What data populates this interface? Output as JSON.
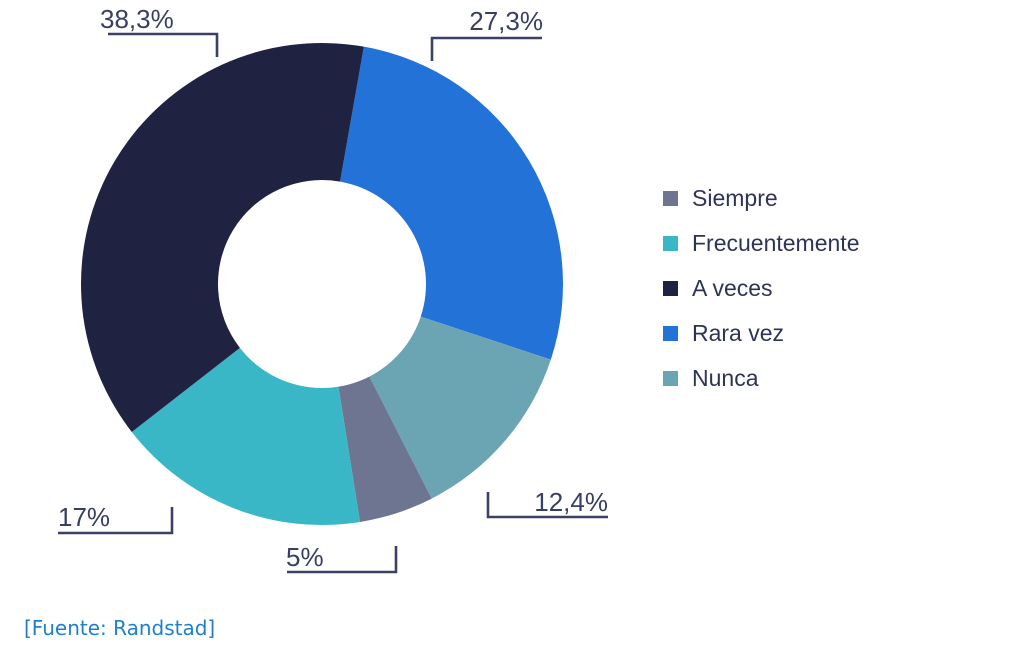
{
  "chart_data": {
    "type": "donut",
    "title": "",
    "legend_position": "right",
    "start_angle_deg": 10,
    "segments": [
      {
        "label": "Siempre",
        "value": 5,
        "display": "5%",
        "color": "#6e7590"
      },
      {
        "label": "Frecuentemente",
        "value": 17,
        "display": "17%",
        "color": "#39b7c6"
      },
      {
        "label": "A veces",
        "value": 38.3,
        "display": "38,3%",
        "color": "#1f2341"
      },
      {
        "label": "Rara vez",
        "value": 27.3,
        "display": "27,3%",
        "color": "#2272d8"
      },
      {
        "label": "Nunca",
        "value": 12.4,
        "display": "12,4%",
        "color": "#6ba5b3"
      }
    ],
    "draw_order": [
      3,
      4,
      0,
      1,
      2
    ]
  },
  "footer": {
    "source": "[Fuente: Randstad]"
  }
}
